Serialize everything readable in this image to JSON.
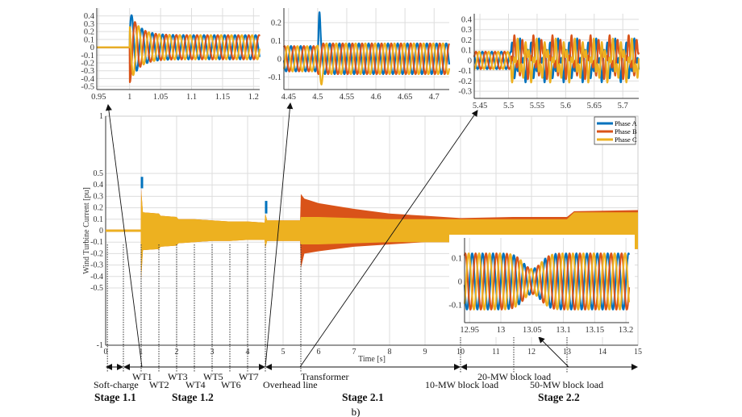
{
  "colors": {
    "phase_a": "#0072BD",
    "phase_b": "#D95319",
    "phase_c": "#EDB120"
  },
  "chart_data": [
    {
      "type": "line",
      "title": "",
      "xlabel": "Time [s]",
      "ylabel": "Wind Turbine Current [pu]",
      "xlim": [
        0,
        15
      ],
      "ylim": [
        -1,
        1
      ],
      "grid": true,
      "legend_position": "top-right",
      "xticks": [
        "0",
        "1",
        "2",
        "3",
        "4",
        "5",
        "6",
        "7",
        "8",
        "9",
        "10",
        "11",
        "12",
        "13",
        "14",
        "15"
      ],
      "yticks": [
        "1",
        "0.5",
        "0.4",
        "0.3",
        "0.2",
        "0.1",
        "0",
        "-0.1",
        "-0.2",
        "-0.3",
        "-0.4",
        "-0.5",
        "-1"
      ],
      "legend": [
        "Phase A",
        "Phase B",
        "Phase C"
      ],
      "envelope": {
        "t": [
          0,
          0.99,
          1.0,
          1.05,
          1.5,
          1.55,
          2.0,
          2.05,
          2.5,
          3.0,
          3.5,
          4.0,
          4.48,
          4.5,
          4.55,
          5.48,
          5.5,
          5.6,
          6.0,
          7.0,
          8.0,
          9.0,
          10.0,
          11.5,
          13.0,
          13.2,
          15.0
        ],
        "phase_c_max": [
          0.01,
          0.01,
          0.35,
          0.16,
          0.15,
          0.13,
          0.12,
          0.1,
          0.1,
          0.09,
          0.08,
          0.08,
          0.07,
          0.15,
          0.09,
          0.09,
          0.12,
          0.12,
          0.12,
          0.11,
          0.1,
          0.1,
          0.1,
          0.1,
          0.1,
          0.16,
          0.16
        ],
        "phase_c_min": [
          -0.01,
          -0.01,
          -0.42,
          -0.17,
          -0.16,
          -0.14,
          -0.13,
          -0.11,
          -0.1,
          -0.09,
          -0.09,
          -0.08,
          -0.08,
          -0.15,
          -0.09,
          -0.09,
          -0.12,
          -0.12,
          -0.12,
          -0.11,
          -0.1,
          -0.1,
          -0.1,
          -0.1,
          -0.1,
          -0.16,
          -0.16
        ],
        "phase_b_max": [
          0.01,
          0.01,
          0.37,
          0.16,
          0.15,
          0.13,
          0.12,
          0.1,
          0.1,
          0.09,
          0.08,
          0.08,
          0.07,
          0.15,
          0.09,
          0.09,
          0.32,
          0.28,
          0.24,
          0.19,
          0.15,
          0.13,
          0.11,
          0.12,
          0.12,
          0.17,
          0.18
        ],
        "phase_b_min": [
          -0.01,
          -0.01,
          -0.42,
          -0.17,
          -0.16,
          -0.14,
          -0.13,
          -0.11,
          -0.1,
          -0.09,
          -0.09,
          -0.08,
          -0.08,
          -0.15,
          -0.09,
          -0.09,
          -0.33,
          -0.2,
          -0.18,
          -0.14,
          -0.12,
          -0.1,
          -0.1,
          -0.1,
          -0.1,
          -0.16,
          -0.16
        ],
        "phase_a_peaks": [
          {
            "t": 1.0,
            "max": 0.47
          },
          {
            "t": 4.5,
            "max": 0.26
          }
        ]
      }
    },
    {
      "type": "line",
      "xlim": [
        0.947,
        1.21
      ],
      "ylim": [
        -0.54,
        0.5
      ],
      "xticks": [
        "0.95",
        "1",
        "1.05",
        "1.1",
        "1.15",
        "1.2"
      ],
      "yticks": [
        "0.4",
        "0.3",
        "0.2",
        "0.1",
        "0",
        "-0.1",
        "-0.2",
        "-0.3",
        "-0.4",
        "-0.5"
      ],
      "event_time": 1.0,
      "amplitude_before": 0,
      "amplitude_after": 0.155,
      "peak": 0.47,
      "frequency_hz": 60
    },
    {
      "type": "line",
      "xlim": [
        4.442,
        4.726
      ],
      "ylim": [
        -0.17,
        0.28
      ],
      "xticks": [
        "4.45",
        "4.5",
        "4.55",
        "4.6",
        "4.65",
        "4.7"
      ],
      "yticks": [
        "0.2",
        "0.1",
        "0",
        "-0.1"
      ],
      "event_time": 4.5,
      "amplitude_before": 0.07,
      "amplitude_after": 0.085,
      "peak": 0.27,
      "frequency_hz": 60
    },
    {
      "type": "line",
      "xlim": [
        5.44,
        5.728
      ],
      "ylim": [
        -0.37,
        0.455
      ],
      "xticks": [
        "5.45",
        "5.5",
        "5.55",
        "5.6",
        "5.65",
        "5.7"
      ],
      "yticks": [
        "0.4",
        "0.3",
        "0.2",
        "0.1",
        "0",
        "-0.1",
        "-0.2",
        "-0.3"
      ],
      "event_time": 5.505,
      "amplitude_before": 0.085,
      "amplitude_after": 0.2,
      "peak": 0.33,
      "frequency_hz": 60
    },
    {
      "type": "line",
      "xlim": [
        12.942,
        13.205
      ],
      "ylim": [
        -0.176,
        0.186
      ],
      "xticks": [
        "12.95",
        "13",
        "13.05",
        "13.1",
        "13.15",
        "13.2"
      ],
      "yticks": [
        "0.1",
        "0",
        "-0.1"
      ],
      "event_time": 13.05,
      "amplitude_before": 0.12,
      "amplitude_after": 0.12,
      "frequency_hz": 60
    }
  ],
  "annotations": {
    "soft_charge": "Soft-charge",
    "wt": [
      "WT1",
      "WT2",
      "WT3",
      "WT4",
      "WT5",
      "WT6",
      "WT7"
    ],
    "overhead_line": "Overhead line",
    "transformer": "Transformer",
    "load_10": "10-MW block load",
    "load_20": "20-MW block load",
    "load_50": "50-MW block load",
    "stages": [
      "Stage 1.1",
      "Stage 1.2",
      "Stage 2.1",
      "Stage 2.2"
    ],
    "caption": "b)"
  }
}
